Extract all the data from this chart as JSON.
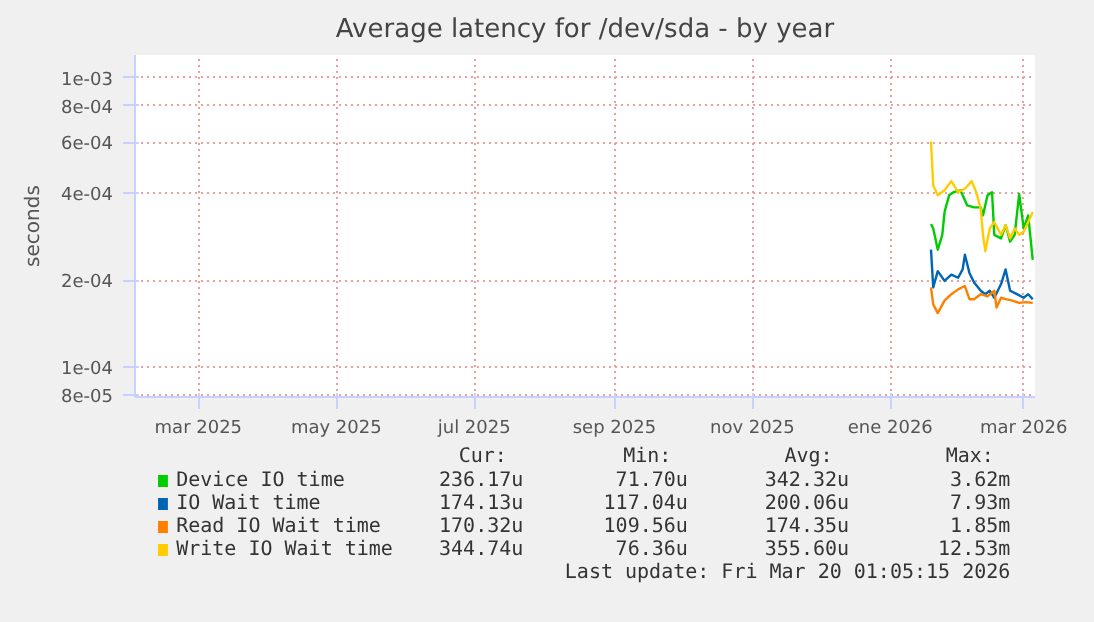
{
  "chart_data": {
    "type": "line",
    "title": "Average latency for /dev/sda - by year",
    "ylabel": "seconds",
    "log": "y",
    "grid": true,
    "legend": "bottom",
    "marker": "none",
    "line_style": "solid",
    "xlim": [
      "2025-02-15",
      "2026-03-20"
    ],
    "xticks": [
      {
        "value": "2025-03-15",
        "label": "mar 2025"
      },
      {
        "value": "2025-05-15",
        "label": "may 2025"
      },
      {
        "value": "2025-07-15",
        "label": "jul 2025"
      },
      {
        "value": "2025-09-15",
        "label": "sep 2025"
      },
      {
        "value": "2025-11-15",
        "label": "nov 2025"
      },
      {
        "value": "2026-01-15",
        "label": "ene 2026"
      },
      {
        "value": "2026-03-15",
        "label": "mar 2026"
      }
    ],
    "ylim": [
      7.9e-05,
      0.0012
    ],
    "yticks": [
      {
        "value": 8e-05,
        "label": "8e-05"
      },
      {
        "value": 0.0001,
        "label": "1e-04"
      },
      {
        "value": 0.0002,
        "label": "2e-04"
      },
      {
        "value": 0.0004,
        "label": "4e-04"
      },
      {
        "value": 0.0006,
        "label": "6e-04"
      },
      {
        "value": 0.0008,
        "label": "8e-04"
      },
      {
        "value": 0.001,
        "label": "1e-03"
      }
    ],
    "series": [
      {
        "name": "Device IO time",
        "color": "#00cc00",
        "x": [
          "2026-02-02",
          "2026-02-03",
          "2026-02-05",
          "2026-02-07",
          "2026-02-08",
          "2026-02-10",
          "2026-02-12",
          "2026-02-15",
          "2026-02-18",
          "2026-02-21",
          "2026-02-24",
          "2026-02-25",
          "2026-02-27",
          "2026-03-01",
          "2026-03-02",
          "2026-03-05",
          "2026-03-07",
          "2026-03-09",
          "2026-03-11",
          "2026-03-13",
          "2026-03-15",
          "2026-03-17",
          "2026-03-19"
        ],
        "values": [
          0.000313,
          0.000302,
          0.000255,
          0.000287,
          0.000344,
          0.000393,
          0.000403,
          0.000409,
          0.000363,
          0.000357,
          0.000357,
          0.000335,
          0.000393,
          0.000403,
          0.000287,
          0.000279,
          0.00031,
          0.000272,
          0.000287,
          0.000397,
          0.000302,
          0.000335,
          0.000235
        ]
      },
      {
        "name": "IO Wait time",
        "color": "#0066b3",
        "x": [
          "2026-02-02",
          "2026-02-03",
          "2026-02-05",
          "2026-02-08",
          "2026-02-11",
          "2026-02-14",
          "2026-02-16",
          "2026-02-17",
          "2026-02-19",
          "2026-02-21",
          "2026-02-24",
          "2026-02-26",
          "2026-02-28",
          "2026-03-02",
          "2026-03-05",
          "2026-03-07",
          "2026-03-09",
          "2026-03-12",
          "2026-03-15",
          "2026-03-17",
          "2026-03-19"
        ],
        "values": [
          0.000255,
          0.000189,
          0.000215,
          0.000199,
          0.000209,
          0.000204,
          0.000218,
          0.000245,
          0.000212,
          0.000197,
          0.000184,
          0.000179,
          0.000184,
          0.000174,
          0.000194,
          0.000218,
          0.000184,
          0.000179,
          0.000174,
          0.000179,
          0.000172
        ]
      },
      {
        "name": "Read IO Wait time",
        "color": "#ff8000",
        "x": [
          "2026-02-02",
          "2026-02-03",
          "2026-02-05",
          "2026-02-08",
          "2026-02-11",
          "2026-02-14",
          "2026-02-17",
          "2026-02-19",
          "2026-02-21",
          "2026-02-24",
          "2026-02-27",
          "2026-03-02",
          "2026-03-03",
          "2026-03-05",
          "2026-03-07",
          "2026-03-10",
          "2026-03-13",
          "2026-03-16",
          "2026-03-19"
        ],
        "values": [
          0.000189,
          0.000165,
          0.000154,
          0.00017,
          0.000179,
          0.000186,
          0.000191,
          0.000172,
          0.000172,
          0.000179,
          0.000176,
          0.000184,
          0.000161,
          0.000174,
          0.000172,
          0.00017,
          0.000167,
          0.000168,
          0.000167
        ]
      },
      {
        "name": "Write IO Wait time",
        "color": "#ffcc00",
        "x": [
          "2026-02-02",
          "2026-02-03",
          "2026-02-05",
          "2026-02-08",
          "2026-02-11",
          "2026-02-14",
          "2026-02-17",
          "2026-02-20",
          "2026-02-22",
          "2026-02-24",
          "2026-02-25",
          "2026-02-26",
          "2026-02-28",
          "2026-03-02",
          "2026-03-05",
          "2026-03-07",
          "2026-03-09",
          "2026-03-11",
          "2026-03-13",
          "2026-03-15",
          "2026-03-17",
          "2026-03-19"
        ],
        "values": [
          0.000603,
          0.000425,
          0.000393,
          0.000409,
          0.00044,
          0.000403,
          0.000414,
          0.00044,
          0.000403,
          0.000353,
          0.000287,
          0.000252,
          0.000302,
          0.000318,
          0.000287,
          0.00031,
          0.000279,
          0.000302,
          0.000287,
          0.000294,
          0.000318,
          0.000344
        ]
      }
    ],
    "annotations": [
      "Cur:",
      "Min:",
      "Avg:",
      "Max:",
      "236.17u",
      "71.70u",
      "342.32u",
      "3.62m",
      "174.13u",
      "117.04u",
      "200.06u",
      "7.93m",
      "170.32u",
      "109.56u",
      "174.35u",
      "1.85m",
      "344.74u",
      "76.36u",
      "355.60u",
      "12.53m",
      "Last update: Fri Mar 20 01:05:15 2026"
    ]
  }
}
